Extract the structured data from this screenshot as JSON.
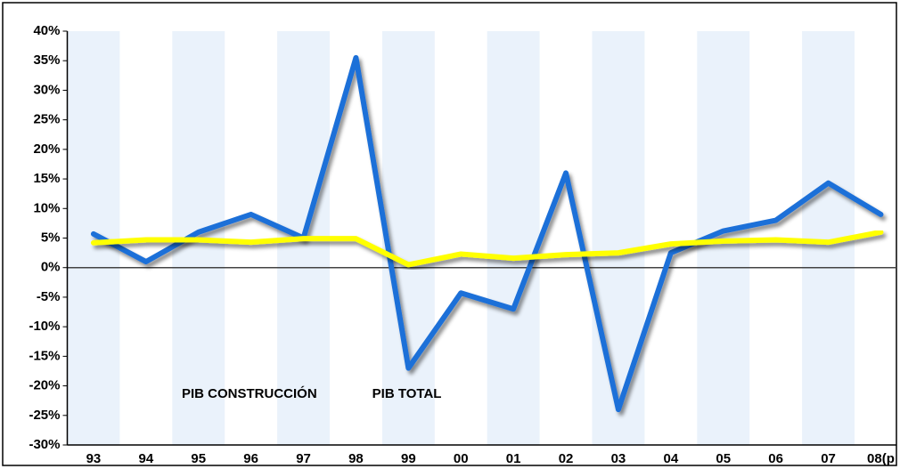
{
  "chart_data": {
    "type": "line",
    "categories": [
      "93",
      "94",
      "95",
      "96",
      "97",
      "98",
      "99",
      "00",
      "01",
      "02",
      "03",
      "04",
      "05",
      "06",
      "07",
      "08(p"
    ],
    "series": [
      {
        "name": "PIB CONSTRUCCIÓN",
        "color": "#1f6fd8",
        "values": [
          5.7,
          1,
          6,
          9,
          5,
          35.5,
          -17,
          -4.3,
          -7,
          16,
          -24,
          2.5,
          6.2,
          8,
          14.3,
          9
        ]
      },
      {
        "name": "PIB TOTAL",
        "color": "#ffff00",
        "values": [
          4.2,
          4.7,
          4.7,
          4.3,
          4.9,
          4.9,
          0.5,
          2.3,
          1.6,
          2.2,
          2.5,
          4,
          4.5,
          4.7,
          4.3,
          6
        ]
      }
    ],
    "ylim": [
      -30,
      40
    ],
    "yticks": [
      {
        "value": -30,
        "label": "-30%"
      },
      {
        "value": -25,
        "label": "-25%"
      },
      {
        "value": -20,
        "label": "-20%"
      },
      {
        "value": -15,
        "label": "-15%"
      },
      {
        "value": -10,
        "label": "-10%"
      },
      {
        "value": -5,
        "label": "-5%"
      },
      {
        "value": 0,
        "label": "0%"
      },
      {
        "value": 5,
        "label": "5%"
      },
      {
        "value": 10,
        "label": "10%"
      },
      {
        "value": 15,
        "label": "15%"
      },
      {
        "value": 20,
        "label": "20%"
      },
      {
        "value": 25,
        "label": "25%"
      },
      {
        "value": 30,
        "label": "30%"
      },
      {
        "value": 35,
        "label": "35%"
      },
      {
        "value": 40,
        "label": "40%"
      }
    ],
    "legend": "lower left"
  }
}
